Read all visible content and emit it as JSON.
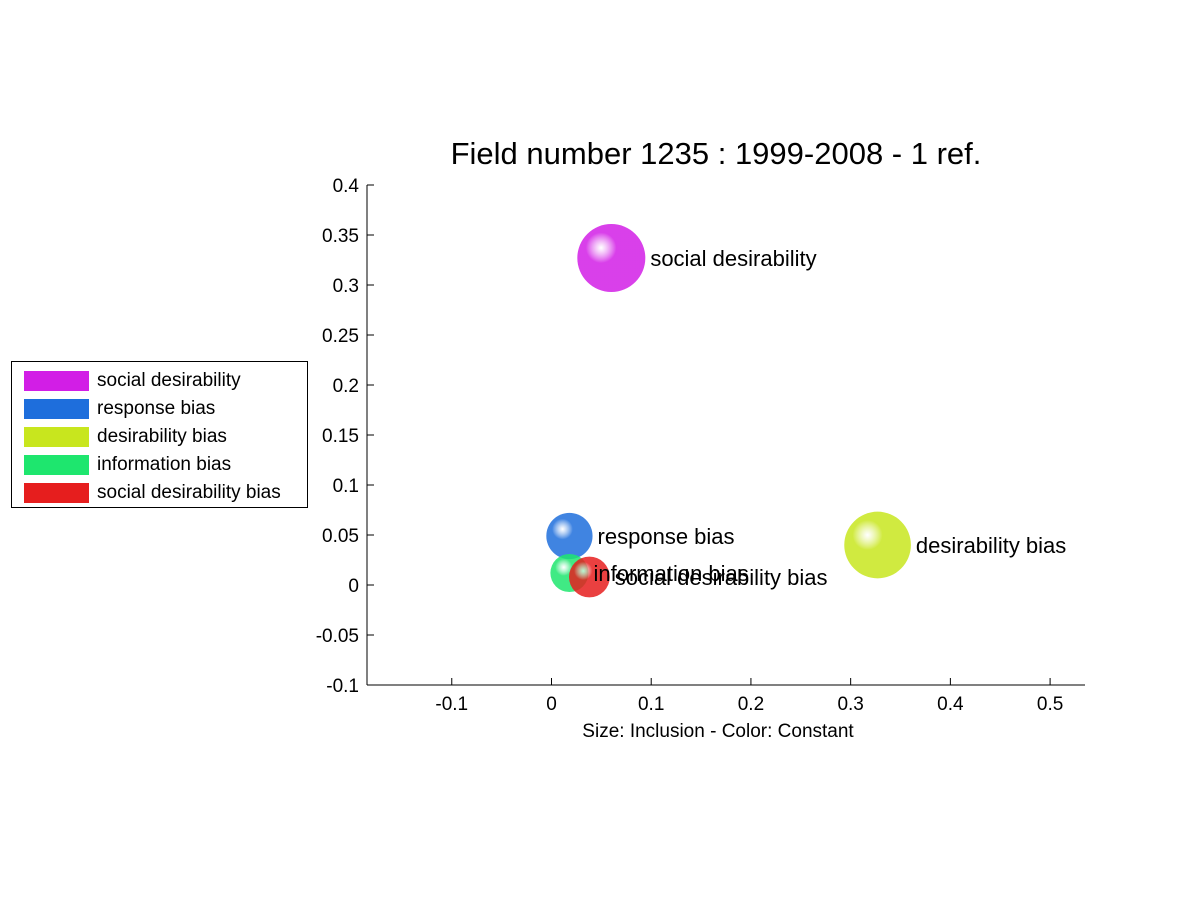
{
  "chart_data": {
    "type": "scatter",
    "title": "Field number 1235 : 1999-2008  - 1 ref.",
    "xlabel": "Size: Inclusion - Color: Constant",
    "ylabel": "",
    "xlim": [
      -0.185,
      0.535
    ],
    "ylim": [
      -0.1,
      0.4
    ],
    "xticks": [
      -0.1,
      0,
      0.1,
      0.2,
      0.3,
      0.4,
      0.5
    ],
    "xtick_labels": [
      "-0.1",
      "0",
      "0.1",
      "0.2",
      "0.3",
      "0.4",
      "0.5"
    ],
    "yticks": [
      -0.1,
      -0.05,
      0,
      0.05,
      0.1,
      0.15,
      0.2,
      0.25,
      0.3,
      0.35,
      0.4
    ],
    "ytick_labels": [
      "-0.1",
      "-0.05",
      "0",
      "0.05",
      "0.1",
      "0.15",
      "0.2",
      "0.25",
      "0.3",
      "0.35",
      "0.4"
    ],
    "grid": false,
    "legend_position": "left",
    "series": [
      {
        "name": "social desirability",
        "x": 0.06,
        "y": 0.327,
        "size": 1.0,
        "color": "#d21ee6"
      },
      {
        "name": "response bias",
        "x": 0.018,
        "y": 0.049,
        "size": 0.68,
        "color": "#1e6edc"
      },
      {
        "name": "desirability bias",
        "x": 0.327,
        "y": 0.04,
        "size": 0.98,
        "color": "#c8e61e"
      },
      {
        "name": "information bias",
        "x": 0.018,
        "y": 0.012,
        "size": 0.56,
        "color": "#1ee66e"
      },
      {
        "name": "social desirability bias",
        "x": 0.038,
        "y": 0.008,
        "size": 0.6,
        "color": "#e61e1e"
      }
    ]
  }
}
